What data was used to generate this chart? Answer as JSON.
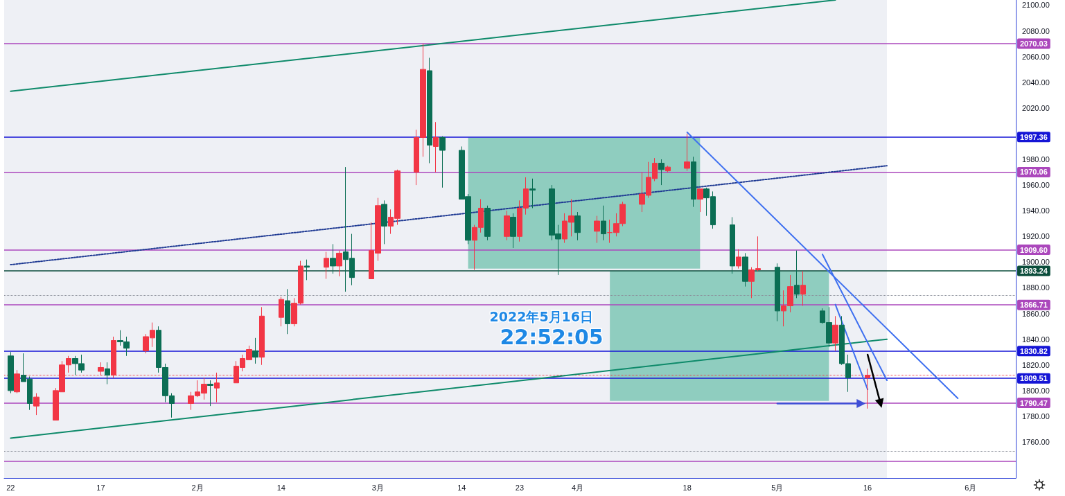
{
  "chart_data": {
    "type": "candlestick",
    "x": [
      "2022-01-03",
      "2022-01-04",
      "2022-01-05",
      "2022-01-06",
      "2022-01-07",
      "2022-01-10",
      "2022-01-11",
      "2022-01-12",
      "2022-01-13",
      "2022-01-14",
      "2022-01-17",
      "2022-01-18",
      "2022-01-19",
      "2022-01-20",
      "2022-01-21",
      "2022-01-24",
      "2022-01-25",
      "2022-01-26",
      "2022-01-27",
      "2022-01-28",
      "2022-01-31",
      "2022-02-01",
      "2022-02-02",
      "2022-02-03",
      "2022-02-04",
      "2022-02-07",
      "2022-02-08",
      "2022-02-09",
      "2022-02-10",
      "2022-02-11",
      "2022-02-14",
      "2022-02-15",
      "2022-02-16",
      "2022-02-17",
      "2022-02-18",
      "2022-02-21",
      "2022-02-22",
      "2022-02-23",
      "2022-02-24",
      "2022-02-25",
      "2022-02-28",
      "2022-03-01",
      "2022-03-02",
      "2022-03-03",
      "2022-03-04",
      "2022-03-07",
      "2022-03-08",
      "2022-03-09",
      "2022-03-10",
      "2022-03-11",
      "2022-03-14",
      "2022-03-15",
      "2022-03-16",
      "2022-03-17",
      "2022-03-18",
      "2022-03-21",
      "2022-03-22",
      "2022-03-23",
      "2022-03-24",
      "2022-03-25",
      "2022-03-28",
      "2022-03-29",
      "2022-03-30",
      "2022-03-31",
      "2022-04-01",
      "2022-04-04",
      "2022-04-05",
      "2022-04-06",
      "2022-04-07",
      "2022-04-08",
      "2022-04-11",
      "2022-04-12",
      "2022-04-13",
      "2022-04-14",
      "2022-04-15",
      "2022-04-18",
      "2022-04-19",
      "2022-04-20",
      "2022-04-21",
      "2022-04-22",
      "2022-04-25",
      "2022-04-26",
      "2022-04-27",
      "2022-04-28",
      "2022-04-29",
      "2022-05-02",
      "2022-05-03",
      "2022-05-04",
      "2022-05-05",
      "2022-05-06",
      "2022-05-09",
      "2022-05-10",
      "2022-05-11",
      "2022-05-12",
      "2022-05-13",
      "2022-05-16"
    ],
    "ohlc": [
      [
        1827,
        1830,
        1798,
        1800
      ],
      [
        1799,
        1816,
        1798,
        1813
      ],
      [
        1812,
        1829,
        1807,
        1807
      ],
      [
        1809,
        1811,
        1785,
        1790
      ],
      [
        1788,
        1798,
        1781,
        1795
      ],
      [
        1777,
        1802,
        1777,
        1800
      ],
      [
        1799,
        1823,
        1799,
        1820
      ],
      [
        1820,
        1827,
        1814,
        1825
      ],
      [
        1825,
        1827,
        1812,
        1821
      ],
      [
        1821,
        1828,
        1814,
        1816
      ],
      [
        1815,
        1822,
        1812,
        1818
      ],
      [
        1817,
        1822,
        1805,
        1812
      ],
      [
        1812,
        1842,
        1810,
        1839
      ],
      [
        1839,
        1847,
        1835,
        1838
      ],
      [
        1838,
        1842,
        1827,
        1833
      ],
      [
        1831,
        1844,
        1829,
        1842
      ],
      [
        1841,
        1853,
        1834,
        1847
      ],
      [
        1847,
        1850,
        1814,
        1818
      ],
      [
        1818,
        1821,
        1791,
        1796
      ],
      [
        1796,
        1798,
        1779,
        1790
      ],
      [
        1790,
        1799,
        1785,
        1796
      ],
      [
        1796,
        1808,
        1795,
        1799
      ],
      [
        1798,
        1810,
        1793,
        1805
      ],
      [
        1805,
        1808,
        1788,
        1804
      ],
      [
        1802,
        1814,
        1791,
        1806
      ],
      [
        1806,
        1823,
        1806,
        1819
      ],
      [
        1818,
        1828,
        1815,
        1825
      ],
      [
        1824,
        1835,
        1824,
        1832
      ],
      [
        1831,
        1841,
        1821,
        1826
      ],
      [
        1826,
        1865,
        1820,
        1858
      ],
      [
        1857,
        1873,
        1850,
        1871
      ],
      [
        1870,
        1879,
        1844,
        1852
      ],
      [
        1852,
        1872,
        1850,
        1868
      ],
      [
        1868,
        1901,
        1867,
        1897
      ],
      [
        1897,
        1902,
        1886,
        1896
      ],
      [
        1896,
        1908,
        1887,
        1903
      ],
      [
        1903,
        1914,
        1891,
        1897
      ],
      [
        1897,
        1909,
        1889,
        1907
      ],
      [
        1908,
        1974,
        1877,
        1902
      ],
      [
        1903,
        1922,
        1882,
        1888
      ],
      [
        1887,
        1931,
        1887,
        1909
      ],
      [
        1907,
        1950,
        1901,
        1944
      ],
      [
        1945,
        1948,
        1914,
        1928
      ],
      [
        1928,
        1941,
        1922,
        1935
      ],
      [
        1934,
        1972,
        1929,
        1971
      ],
      [
        1970,
        2003,
        1960,
        1997
      ],
      [
        1997,
        2070,
        1982,
        2050
      ],
      [
        2049,
        2059,
        1977,
        1991
      ],
      [
        1990,
        2009,
        1970,
        1997
      ],
      [
        1997,
        1998,
        1958,
        1987
      ],
      [
        1987,
        1990,
        1949,
        1949
      ],
      [
        1951,
        1953,
        1914,
        1917
      ],
      [
        1917,
        1929,
        1894,
        1927
      ],
      [
        1927,
        1949,
        1923,
        1942
      ],
      [
        1942,
        1944,
        1917,
        1920
      ],
      [
        1920,
        1940,
        1917,
        1936
      ],
      [
        1935,
        1938,
        1911,
        1920
      ],
      [
        1920,
        1948,
        1916,
        1942
      ],
      [
        1942,
        1966,
        1937,
        1957
      ],
      [
        1957,
        1965,
        1942,
        1956
      ],
      [
        1957,
        1960,
        1917,
        1921
      ],
      [
        1922,
        1929,
        1890,
        1918
      ],
      [
        1918,
        1938,
        1915,
        1932
      ],
      [
        1931,
        1949,
        1920,
        1936
      ],
      [
        1936,
        1939,
        1917,
        1923
      ],
      [
        1924,
        1936,
        1915,
        1932
      ],
      [
        1932,
        1944,
        1917,
        1922
      ],
      [
        1923,
        1933,
        1915,
        1923
      ],
      [
        1923,
        1938,
        1920,
        1930
      ],
      [
        1930,
        1947,
        1928,
        1945
      ],
      [
        1945,
        1970,
        1939,
        1953
      ],
      [
        1952,
        1978,
        1950,
        1966
      ],
      [
        1965,
        1981,
        1963,
        1977
      ],
      [
        1977,
        1980,
        1960,
        1972
      ],
      [
        1971,
        1975,
        1970,
        1974
      ],
      [
        1973,
        2000,
        1971,
        1978
      ],
      [
        1978,
        1982,
        1943,
        1949
      ],
      [
        1949,
        1957,
        1939,
        1957
      ],
      [
        1957,
        1958,
        1936,
        1950
      ],
      [
        1951,
        1955,
        1926,
        1929
      ],
      [
        1929,
        1935,
        1891,
        1897
      ],
      [
        1897,
        1910,
        1895,
        1904
      ],
      [
        1904,
        1907,
        1881,
        1885
      ],
      [
        1885,
        1896,
        1872,
        1894
      ],
      [
        1894,
        1920,
        1893,
        1895
      ],
      [
        1896,
        1899,
        1854,
        1862
      ],
      [
        1862,
        1878,
        1850,
        1866
      ],
      [
        1866,
        1890,
        1861,
        1881
      ],
      [
        1882,
        1909,
        1872,
        1875
      ],
      [
        1875,
        1893,
        1866,
        1882
      ],
      [
        1862,
        1864,
        1852,
        1853
      ],
      [
        1853,
        1865,
        1834,
        1837
      ],
      [
        1837,
        1858,
        1831,
        1851
      ],
      [
        1851,
        1858,
        1820,
        1821
      ],
      [
        1821,
        1828,
        1799,
        1810
      ],
      [
        1810,
        1817,
        1786,
        1812
      ]
    ],
    "colors": [
      "#0b6e54",
      "#f23645",
      "#0b6e54",
      "#0b6e54",
      "#f23645",
      "#f23645",
      "#f23645",
      "#f23645",
      "#0b6e54",
      "#0b6e54",
      "#f23645",
      "#0b6e54",
      "#f23645",
      "#0b6e54",
      "#0b6e54",
      "#f23645",
      "#f23645",
      "#0b6e54",
      "#0b6e54",
      "#0b6e54",
      "#f23645",
      "#f23645",
      "#f23645",
      "#0b6e54",
      "#f23645",
      "#f23645",
      "#f23645",
      "#f23645",
      "#0b6e54",
      "#f23645",
      "#f23645",
      "#0b6e54",
      "#f23645",
      "#f23645",
      "#0b6e54",
      "#f23645",
      "#0b6e54",
      "#f23645",
      "#0b6e54",
      "#0b6e54",
      "#f23645",
      "#f23645",
      "#0b6e54",
      "#f23645",
      "#f23645",
      "#f23645",
      "#f23645",
      "#0b6e54",
      "#f23645",
      "#0b6e54",
      "#0b6e54",
      "#0b6e54",
      "#f23645",
      "#f23645",
      "#0b6e54",
      "#f23645",
      "#0b6e54",
      "#f23645",
      "#f23645",
      "#0b6e54",
      "#0b6e54",
      "#0b6e54",
      "#f23645",
      "#f23645",
      "#0b6e54",
      "#f23645",
      "#0b6e54",
      "#f23645",
      "#f23645",
      "#f23645",
      "#f23645",
      "#f23645",
      "#f23645",
      "#0b6e54",
      "#f23645",
      "#f23645",
      "#0b6e54",
      "#f23645",
      "#0b6e54",
      "#0b6e54",
      "#0b6e54",
      "#f23645",
      "#0b6e54",
      "#f23645",
      "#f23645",
      "#0b6e54",
      "#f23645",
      "#f23645",
      "#0b6e54",
      "#f23645",
      "#0b6e54",
      "#0b6e54",
      "#f23645",
      "#0b6e54",
      "#0b6e54",
      "#f23645"
    ],
    "series": [
      {
        "type": "line",
        "color": "#8fcdbf",
        "x": [
          "2022-03-15",
          "2022-04-20"
        ],
        "values": [
          null,
          null
        ],
        "lower": [
          1895,
          1895
        ],
        "upper": [
          1997,
          1997
        ]
      },
      {
        "type": "line",
        "color": "#8fcdbf",
        "x": [
          "2022-04-06",
          "2022-05-10"
        ],
        "values": [
          null,
          null
        ],
        "lower": [
          1792,
          1792
        ],
        "upper": [
          1893,
          1893
        ]
      },
      {
        "type": "line",
        "color": "#0e8a6a",
        "x": [
          "2022-01-03",
          "2022-05-11"
        ],
        "values": [
          2033,
          2104
        ]
      },
      {
        "type": "line",
        "color": "#0e8a6a",
        "x": [
          "2022-01-03",
          "2022-05-19"
        ],
        "values": [
          1763,
          1840
        ]
      },
      {
        "type": "line",
        "color": "#1f3a93",
        "line_style": "dotted",
        "x": [
          "2022-01-03",
          "2022-05-19"
        ],
        "values": [
          1898,
          1975
        ]
      },
      {
        "type": "line",
        "color": "#3d6ff0",
        "x": [
          "2022-04-18",
          "2022-05-30"
        ],
        "values": [
          2001,
          1794
        ]
      },
      {
        "type": "line",
        "color": "#3d6ff0",
        "x": [
          "2022-05-09",
          "2022-05-19"
        ],
        "values": [
          1906,
          1808
        ]
      },
      {
        "type": "line",
        "color": "#3d6ff0",
        "x": [
          "2022-05-11",
          "2022-05-16"
        ],
        "values": [
          1867,
          1801
        ]
      },
      {
        "type": "line",
        "color": "#3f4fd6",
        "marker": "triangle",
        "x": [
          "2022-05-02",
          "2022-05-15"
        ],
        "values": [
          1790,
          1790
        ]
      },
      {
        "type": "line",
        "color": "#000000",
        "marker": "triangle",
        "x": [
          "2022-05-16",
          "2022-05-18"
        ],
        "values": [
          1828,
          1790
        ]
      }
    ],
    "xlim": [
      "2022-01-02",
      "2022-06-08"
    ],
    "xticks": [
      {
        "value": "2022-01-03",
        "label": "22"
      },
      {
        "value": "2022-01-17",
        "label": "17"
      },
      {
        "value": "2022-02-01",
        "label": "2月"
      },
      {
        "value": "2022-02-14",
        "label": "14"
      },
      {
        "value": "2022-03-01",
        "label": "3月"
      },
      {
        "value": "2022-03-14",
        "label": "14"
      },
      {
        "value": "2022-03-23",
        "label": "23"
      },
      {
        "value": "2022-04-01",
        "label": "4月"
      },
      {
        "value": "2022-04-18",
        "label": "18"
      },
      {
        "value": "2022-05-02",
        "label": "5月"
      },
      {
        "value": "2022-05-16",
        "label": "16"
      },
      {
        "value": "2022-06-01",
        "label": "6月"
      }
    ],
    "ylim": [
      1732,
      2104
    ],
    "yticks": [
      {
        "value": 1760,
        "label": "1760.00"
      },
      {
        "value": 1780,
        "label": "1780.00"
      },
      {
        "value": 1800,
        "label": "1800.00"
      },
      {
        "value": 1820,
        "label": "1820.00"
      },
      {
        "value": 1840,
        "label": "1840.00"
      },
      {
        "value": 1860,
        "label": "1860.00"
      },
      {
        "value": 1880,
        "label": "1880.00"
      },
      {
        "value": 1900,
        "label": "1900.00"
      },
      {
        "value": 1920,
        "label": "1920.00"
      },
      {
        "value": 1940,
        "label": "1940.00"
      },
      {
        "value": 1960,
        "label": "1960.00"
      },
      {
        "value": 1980,
        "label": "1980.00"
      },
      {
        "value": 2020,
        "label": "2020.00"
      },
      {
        "value": 2040,
        "label": "2040.00"
      },
      {
        "value": 2060,
        "label": "2060.00"
      },
      {
        "value": 2080,
        "label": "2080.00"
      },
      {
        "value": 2100,
        "label": "2100.00"
      }
    ],
    "ref_lines": [
      {
        "axis": "y",
        "value": 2070.03,
        "label": "2070.03",
        "color": "#ab47bc"
      },
      {
        "axis": "y",
        "value": 1997.36,
        "label": "1997.36",
        "color": "#1515d6"
      },
      {
        "axis": "y",
        "value": 1970.06,
        "label": "1970.06",
        "color": "#ab47bc"
      },
      {
        "axis": "y",
        "value": 1909.6,
        "label": "1909.60",
        "color": "#ab47bc"
      },
      {
        "axis": "y",
        "value": 1893.24,
        "label": "1893.24",
        "color": "#0b4d3b"
      },
      {
        "axis": "y",
        "value": 1866.71,
        "label": "1866.71",
        "color": "#ab47bc"
      },
      {
        "axis": "y",
        "value": 1830.82,
        "label": "1830.82",
        "color": "#1515d6"
      },
      {
        "axis": "y",
        "value": 1809.51,
        "label": "1809.51",
        "color": "#1515d6"
      },
      {
        "axis": "y",
        "value": 1790.47,
        "label": "1790.47",
        "color": "#ab47bc"
      },
      {
        "axis": "y",
        "value": 1745,
        "color": "#ab47bc"
      },
      {
        "axis": "y",
        "value": 1874,
        "color": "#8a8e99",
        "line_style": "dotted"
      },
      {
        "axis": "y",
        "value": 1753,
        "color": "#8a8e99",
        "line_style": "dotted"
      },
      {
        "axis": "y",
        "value": 1812,
        "color": "#f23645",
        "line_style": "dotted"
      }
    ],
    "bands": [
      {
        "axis": "x",
        "from": "2022-01-02",
        "to": "2022-05-19",
        "color": "#eef0f5"
      }
    ],
    "annotations": [
      "2022年5月16日",
      "22:52:05"
    ]
  }
}
